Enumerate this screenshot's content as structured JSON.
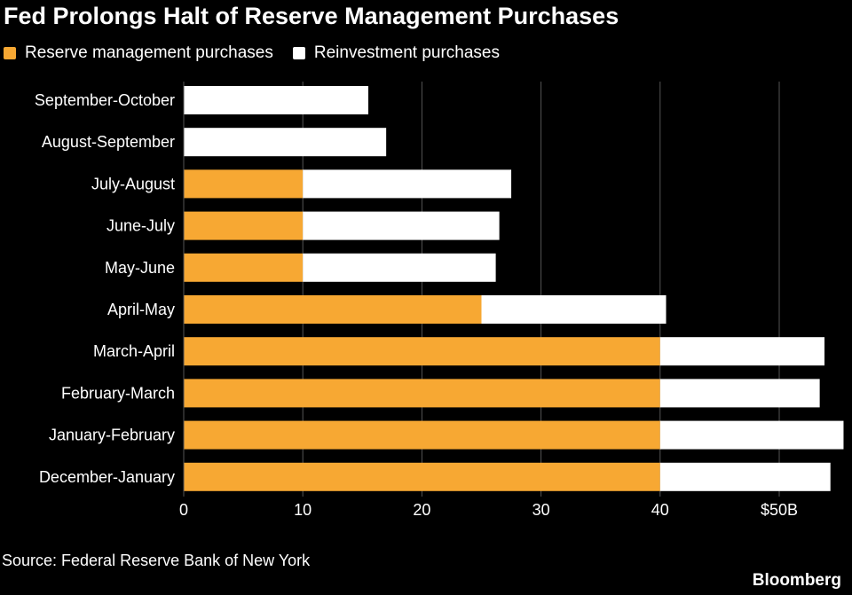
{
  "colors": {
    "background": "#000000",
    "reserve": "#f7a833",
    "reinvestment": "#ffffff",
    "grid": "#555555",
    "text": "#ffffff"
  },
  "chart_data": {
    "type": "bar",
    "orientation": "horizontal",
    "stacked": true,
    "title": "Fed Prolongs Halt of Reserve Management Purchases",
    "categories": [
      "September-October",
      "August-September",
      "July-August",
      "June-July",
      "May-June",
      "April-May",
      "March-April",
      "February-March",
      "January-February",
      "December-January"
    ],
    "series": [
      {
        "name": "Reserve management purchases",
        "color": "#f7a833",
        "values": [
          0,
          0,
          10,
          10,
          10,
          25,
          40,
          40,
          40,
          40
        ]
      },
      {
        "name": "Reinvestment purchases",
        "color": "#ffffff",
        "values": [
          15.5,
          17,
          17.5,
          16.5,
          16.2,
          15.5,
          13.8,
          13.4,
          15.4,
          14.3
        ]
      }
    ],
    "xlim": [
      0,
      55
    ],
    "xticks": [
      0,
      10,
      20,
      30,
      40,
      50
    ],
    "xtick_labels": [
      "0",
      "10",
      "20",
      "30",
      "40",
      "$50B"
    ],
    "grid": true,
    "legend_position": "top-left"
  },
  "legend": [
    {
      "label": "Reserve management purchases",
      "color": "#f7a833"
    },
    {
      "label": "Reinvestment purchases",
      "color": "#ffffff"
    }
  ],
  "footer": {
    "source": "Source: Federal Reserve Bank of New York",
    "brand": "Bloomberg"
  }
}
